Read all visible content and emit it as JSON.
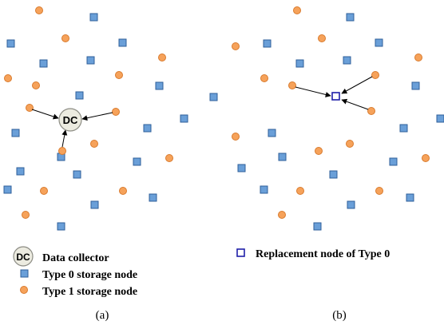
{
  "panel_a": {
    "caption": "(a)",
    "collector_label": "DC"
  },
  "panel_b": {
    "caption": "(b)"
  },
  "legend": {
    "data_collector_icon_label": "DC",
    "data_collector": "Data collector",
    "type0": "Type 0 storage node",
    "type1": "Type 1 storage node",
    "replacement": "Replacement node of Type 0"
  },
  "colors": {
    "type0_fill": "#6a9fd8",
    "type1_fill": "#f6a25a",
    "replacement_stroke": "#1f1fa8",
    "collector_fill": "#ecebe0"
  }
}
